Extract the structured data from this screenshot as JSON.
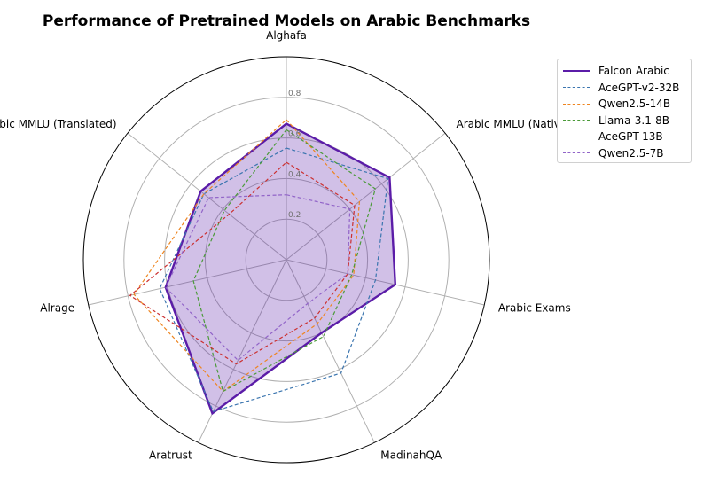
{
  "chart_data": {
    "type": "radar",
    "title": "Performance of Pretrained Models on Arabic Benchmarks",
    "categories": [
      "Alghafa",
      "Arabic MMLU (Native)",
      "Arabic Exams",
      "MadinahQA",
      "Aratrust",
      "Alrage",
      "Arabic MMLU (Translated)"
    ],
    "rlim": [
      0,
      1.0
    ],
    "rticks": [
      0.2,
      0.4,
      0.6,
      0.8
    ],
    "rtick_labels": [
      "0.2",
      "0.4",
      "0.6",
      "0.8"
    ],
    "grid": true,
    "legend_position": "top-right",
    "series": [
      {
        "name": "Falcon Arabic",
        "values": [
          0.67,
          0.65,
          0.55,
          0.4,
          0.84,
          0.61,
          0.54
        ],
        "color": "#5b1ca8",
        "style": "solid",
        "fill": true
      },
      {
        "name": "AceGPT-v2-32B",
        "values": [
          0.55,
          0.64,
          0.45,
          0.62,
          0.83,
          0.64,
          0.52
        ],
        "color": "#3b75af",
        "style": "dashed"
      },
      {
        "name": "Qwen2.5-14B",
        "values": [
          0.69,
          0.46,
          0.34,
          0.35,
          0.72,
          0.77,
          0.52
        ],
        "color": "#ee8520",
        "style": "dashed"
      },
      {
        "name": "Llama-3.1-8B",
        "values": [
          0.64,
          0.56,
          0.33,
          0.42,
          0.72,
          0.47,
          0.39
        ],
        "color": "#4a9a38",
        "style": "dashed"
      },
      {
        "name": "AceGPT-13B",
        "values": [
          0.48,
          0.43,
          0.31,
          0.32,
          0.57,
          0.79,
          0.36
        ],
        "color": "#cb2f2f",
        "style": "dashed"
      },
      {
        "name": "Qwen2.5-7B",
        "values": [
          0.32,
          0.4,
          0.31,
          0.24,
          0.55,
          0.61,
          0.49
        ],
        "color": "#9164c8",
        "style": "dashed"
      }
    ]
  }
}
